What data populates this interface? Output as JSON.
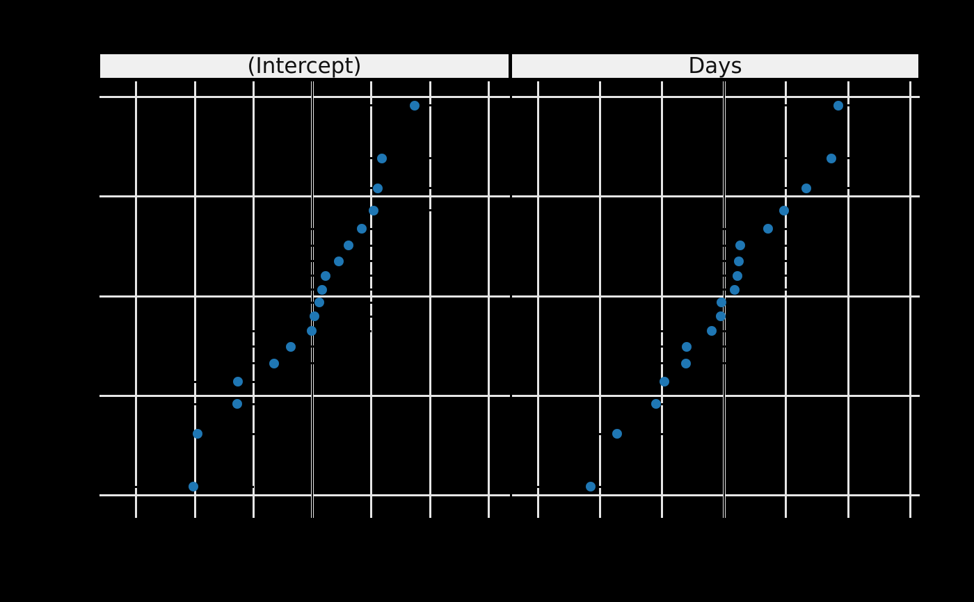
{
  "figure": {
    "background": "#000000",
    "kind": "random-effects caterpillar / normal Q-Q dot plot, two panels"
  },
  "chart_data": {
    "type": "scatter",
    "title": "",
    "legend": null,
    "grid": "on",
    "point_color": "#1f77b4",
    "grid_color": "#e6e6e6",
    "strip_bg": "#f0f0f0",
    "strip_text_color": "#111111",
    "zero_line_color": "#000000",
    "y_axis": {
      "tick_values": [
        -2,
        -1,
        0,
        1,
        2
      ],
      "range": [
        -2.17,
        2.16
      ],
      "quantiles": [
        -1.914,
        -1.383,
        -1.085,
        -0.862,
        -0.674,
        -0.507,
        -0.352,
        -0.206,
        -0.065,
        0.065,
        0.206,
        0.352,
        0.507,
        0.674,
        0.862,
        1.085,
        1.383,
        1.914
      ]
    },
    "panels": [
      {
        "label": "(Intercept)",
        "x_tick_values": [
          -60,
          -40,
          -20,
          0,
          20,
          40,
          60
        ],
        "x_range": [
          -72.4,
          67.1
        ],
        "bar_halfwidth": 20.4,
        "values": [
          -40.39,
          -38.96,
          -25.61,
          -25.21,
          -13.07,
          -7.23,
          -0.33,
          0.81,
          2.26,
          3.28,
          4.58,
          9.04,
          12.31,
          16.84,
          20.86,
          22.26,
          23.69,
          34.89
        ]
      },
      {
        "label": "Days",
        "x_tick_values": [
          -15,
          -10,
          -5,
          0,
          5,
          10,
          15
        ],
        "x_range": [
          -17.1,
          15.8
        ],
        "bar_halfwidth": 4.4,
        "values": [
          -10.75,
          -8.62,
          -5.45,
          -4.81,
          -3.07,
          -3.01,
          -0.99,
          -0.27,
          -0.22,
          0.87,
          1.07,
          1.17,
          1.28,
          3.54,
          4.82,
          6.61,
          8.63,
          9.2
        ]
      }
    ]
  }
}
